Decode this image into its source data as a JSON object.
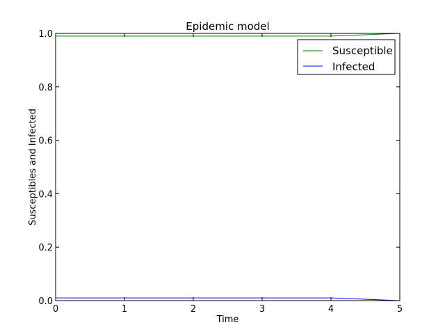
{
  "chart_data": {
    "type": "line",
    "title": "Epidemic model",
    "xlabel": "Time",
    "ylabel": "Susceptibles and Infected",
    "xlim": [
      0,
      5
    ],
    "ylim": [
      0.0,
      1.0
    ],
    "xticks": [
      "0",
      "1",
      "2",
      "3",
      "4",
      "5"
    ],
    "yticks": [
      "0.0",
      "0.2",
      "0.4",
      "0.6",
      "0.8",
      "1.0"
    ],
    "grid": false,
    "legend_position": "top-right",
    "x": [
      0,
      1,
      2,
      3,
      4,
      5
    ],
    "series": [
      {
        "name": "Susceptible",
        "color": "#007f00",
        "values": [
          0.99,
          0.99,
          0.99,
          0.99,
          0.99,
          1.0
        ]
      },
      {
        "name": "Infected",
        "color": "#0000ff",
        "values": [
          0.01,
          0.01,
          0.01,
          0.01,
          0.01,
          0.0
        ]
      }
    ]
  }
}
